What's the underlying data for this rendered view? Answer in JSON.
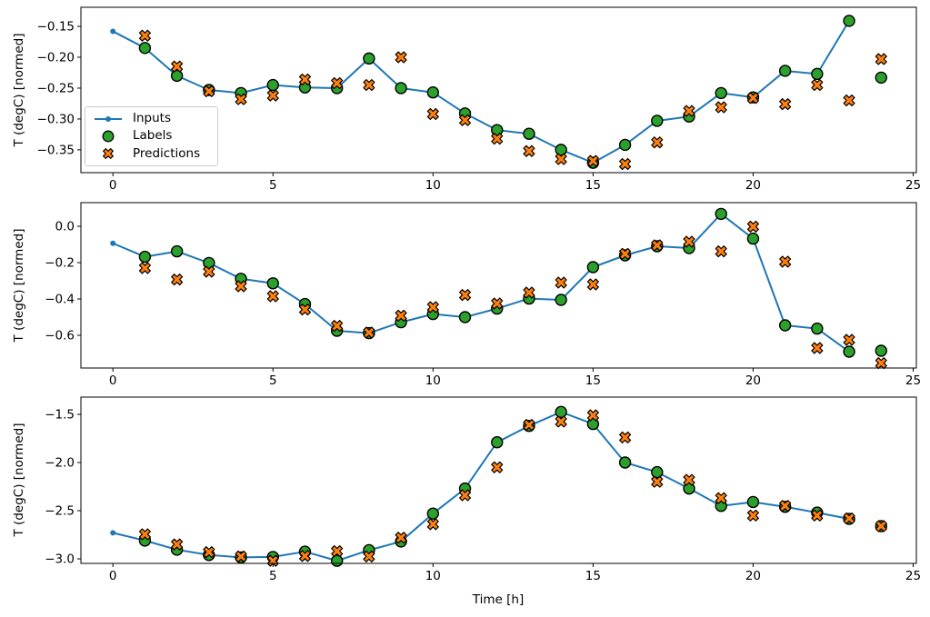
{
  "figure": {
    "xlabel": "Time [h]",
    "ylabel": "T (degC) [normed]",
    "legend": {
      "inputs": "Inputs",
      "labels": "Labels",
      "predictions": "Predictions"
    },
    "colors": {
      "inputs": "#1f77b4",
      "labels": "#2ca02c",
      "predictions": "#ff7f0e",
      "marker_edge": "#000000",
      "axes": "#000000"
    }
  },
  "chart_data": [
    {
      "type": "line",
      "title": "",
      "ylabel": "T (degC) [normed]",
      "xlim": [
        -1.0,
        25.1
      ],
      "ylim": [
        -0.387,
        -0.119
      ],
      "xticks": [
        0,
        5,
        10,
        15,
        20,
        25
      ],
      "xtick_labels": [
        "0",
        "5",
        "10",
        "15",
        "20",
        "25"
      ],
      "yticks": [
        -0.15,
        -0.2,
        -0.25,
        -0.3,
        -0.35
      ],
      "ytick_labels": [
        "−0.15",
        "−0.20",
        "−0.25",
        "−0.30",
        "−0.35"
      ],
      "grid": false,
      "legend_position": "center left",
      "series": [
        {
          "name": "Inputs",
          "style": "line-dot",
          "x": [
            0,
            1,
            2,
            3,
            4,
            5,
            6,
            7,
            8,
            9,
            10,
            11,
            12,
            13,
            14,
            15,
            16,
            17,
            18,
            19,
            20,
            21,
            22,
            23
          ],
          "y": [
            -0.158,
            -0.185,
            -0.23,
            -0.253,
            -0.258,
            -0.245,
            -0.249,
            -0.25,
            -0.202,
            -0.25,
            -0.257,
            -0.291,
            -0.318,
            -0.324,
            -0.35,
            -0.371,
            -0.342,
            -0.303,
            -0.296,
            -0.258,
            -0.265,
            -0.222,
            -0.227,
            -0.141
          ]
        },
        {
          "name": "Labels",
          "style": "scatter-circle",
          "x": [
            1,
            2,
            3,
            4,
            5,
            6,
            7,
            8,
            9,
            10,
            11,
            12,
            13,
            14,
            15,
            16,
            17,
            18,
            19,
            20,
            21,
            22,
            23,
            24
          ],
          "y": [
            -0.185,
            -0.23,
            -0.253,
            -0.258,
            -0.245,
            -0.249,
            -0.25,
            -0.202,
            -0.25,
            -0.257,
            -0.291,
            -0.318,
            -0.324,
            -0.35,
            -0.371,
            -0.342,
            -0.303,
            -0.296,
            -0.258,
            -0.265,
            -0.222,
            -0.227,
            -0.141,
            -0.233
          ]
        },
        {
          "name": "Predictions",
          "style": "scatter-x",
          "x": [
            1,
            2,
            3,
            4,
            5,
            6,
            7,
            8,
            9,
            10,
            11,
            12,
            13,
            14,
            15,
            16,
            17,
            18,
            19,
            20,
            21,
            22,
            23,
            24
          ],
          "y": [
            -0.165,
            -0.215,
            -0.255,
            -0.268,
            -0.262,
            -0.236,
            -0.242,
            -0.245,
            -0.2,
            -0.292,
            -0.302,
            -0.332,
            -0.352,
            -0.365,
            -0.368,
            -0.373,
            -0.338,
            -0.287,
            -0.281,
            -0.266,
            -0.276,
            -0.245,
            -0.27,
            -0.203
          ]
        }
      ]
    },
    {
      "type": "line",
      "title": "",
      "ylabel": "T (degC) [normed]",
      "xlim": [
        -1.0,
        25.1
      ],
      "ylim": [
        -0.78,
        0.13
      ],
      "xticks": [
        0,
        5,
        10,
        15,
        20,
        25
      ],
      "xtick_labels": [
        "0",
        "5",
        "10",
        "15",
        "20",
        "25"
      ],
      "yticks": [
        0.0,
        -0.2,
        -0.4,
        -0.6
      ],
      "ytick_labels": [
        "0.0",
        "−0.2",
        "−0.4",
        "−0.6"
      ],
      "grid": false,
      "legend_position": "none",
      "series": [
        {
          "name": "Inputs",
          "style": "line-dot",
          "x": [
            0,
            1,
            2,
            3,
            4,
            5,
            6,
            7,
            8,
            9,
            10,
            11,
            12,
            13,
            14,
            15,
            16,
            17,
            18,
            19,
            20,
            21,
            22,
            23
          ],
          "y": [
            -0.094,
            -0.168,
            -0.138,
            -0.202,
            -0.289,
            -0.314,
            -0.428,
            -0.575,
            -0.588,
            -0.528,
            -0.483,
            -0.5,
            -0.453,
            -0.398,
            -0.405,
            -0.225,
            -0.16,
            -0.11,
            -0.12,
            0.068,
            -0.068,
            -0.545,
            -0.563,
            -0.69
          ]
        },
        {
          "name": "Labels",
          "style": "scatter-circle",
          "x": [
            1,
            2,
            3,
            4,
            5,
            6,
            7,
            8,
            9,
            10,
            11,
            12,
            13,
            14,
            15,
            16,
            17,
            18,
            19,
            20,
            21,
            22,
            23,
            24
          ],
          "y": [
            -0.168,
            -0.138,
            -0.202,
            -0.289,
            -0.314,
            -0.428,
            -0.575,
            -0.588,
            -0.528,
            -0.483,
            -0.5,
            -0.453,
            -0.398,
            -0.405,
            -0.225,
            -0.16,
            -0.11,
            -0.12,
            0.068,
            -0.068,
            -0.545,
            -0.563,
            -0.69,
            -0.685
          ]
        },
        {
          "name": "Predictions",
          "style": "scatter-x",
          "x": [
            1,
            2,
            3,
            4,
            5,
            6,
            7,
            8,
            9,
            10,
            11,
            12,
            13,
            14,
            15,
            16,
            17,
            18,
            19,
            20,
            21,
            22,
            23,
            24
          ],
          "y": [
            -0.23,
            -0.293,
            -0.25,
            -0.33,
            -0.385,
            -0.458,
            -0.548,
            -0.585,
            -0.492,
            -0.445,
            -0.378,
            -0.425,
            -0.365,
            -0.31,
            -0.32,
            -0.152,
            -0.105,
            -0.085,
            -0.138,
            -0.002,
            -0.195,
            -0.67,
            -0.625,
            -0.753
          ]
        }
      ]
    },
    {
      "type": "line",
      "title": "",
      "ylabel": "T (degC) [normed]",
      "xlabel": "Time [h]",
      "xlim": [
        -1.0,
        25.1
      ],
      "ylim": [
        -3.047,
        -1.321
      ],
      "xticks": [
        0,
        5,
        10,
        15,
        20,
        25
      ],
      "xtick_labels": [
        "0",
        "5",
        "10",
        "15",
        "20",
        "25"
      ],
      "yticks": [
        -1.5,
        -2.0,
        -2.5,
        -3.0
      ],
      "ytick_labels": [
        "−1.5",
        "−2.0",
        "−2.5",
        "−3.0"
      ],
      "grid": false,
      "legend_position": "none",
      "series": [
        {
          "name": "Inputs",
          "style": "line-dot",
          "x": [
            0,
            1,
            2,
            3,
            4,
            5,
            6,
            7,
            8,
            9,
            10,
            11,
            12,
            13,
            14,
            15,
            16,
            17,
            18,
            19,
            20,
            21,
            22,
            23
          ],
          "y": [
            -2.73,
            -2.81,
            -2.905,
            -2.96,
            -2.985,
            -2.98,
            -2.925,
            -3.02,
            -2.91,
            -2.82,
            -2.53,
            -2.27,
            -1.79,
            -1.62,
            -1.475,
            -1.6,
            -2.0,
            -2.1,
            -2.27,
            -2.45,
            -2.41,
            -2.46,
            -2.52,
            -2.585
          ]
        },
        {
          "name": "Labels",
          "style": "scatter-circle",
          "x": [
            1,
            2,
            3,
            4,
            5,
            6,
            7,
            8,
            9,
            10,
            11,
            12,
            13,
            14,
            15,
            16,
            17,
            18,
            19,
            20,
            21,
            22,
            23,
            24
          ],
          "y": [
            -2.81,
            -2.905,
            -2.96,
            -2.985,
            -2.98,
            -2.925,
            -3.02,
            -2.91,
            -2.82,
            -2.53,
            -2.27,
            -1.79,
            -1.62,
            -1.475,
            -1.6,
            -2.0,
            -2.1,
            -2.27,
            -2.45,
            -2.41,
            -2.46,
            -2.52,
            -2.585,
            -2.66
          ]
        },
        {
          "name": "Predictions",
          "style": "scatter-x",
          "x": [
            1,
            2,
            3,
            4,
            5,
            6,
            7,
            8,
            9,
            10,
            11,
            12,
            13,
            14,
            15,
            16,
            17,
            18,
            19,
            20,
            21,
            22,
            23,
            24
          ],
          "y": [
            -2.745,
            -2.85,
            -2.93,
            -2.975,
            -3.02,
            -2.97,
            -2.92,
            -2.975,
            -2.78,
            -2.64,
            -2.34,
            -2.05,
            -1.61,
            -1.575,
            -1.51,
            -1.74,
            -2.2,
            -2.18,
            -2.37,
            -2.55,
            -2.45,
            -2.55,
            -2.58,
            -2.66
          ]
        }
      ]
    }
  ]
}
